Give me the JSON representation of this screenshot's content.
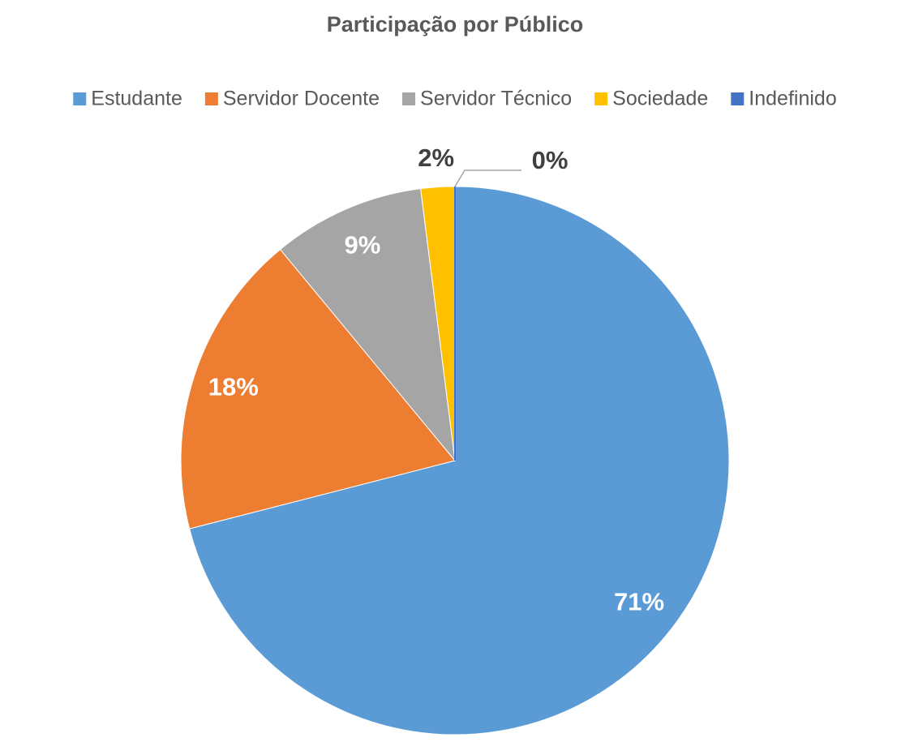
{
  "chart_data": {
    "type": "pie",
    "title": "Participação por Público",
    "categories": [
      "Estudante",
      "Servidor Docente",
      "Servidor Técnico",
      "Sociedade",
      "Indefinido"
    ],
    "values": [
      71,
      18,
      9,
      2,
      0
    ],
    "value_labels": [
      "71%",
      "18%",
      "9%",
      "2%",
      "0%"
    ],
    "colors": [
      "#5b9bd5",
      "#ed7d31",
      "#a5a5a5",
      "#ffc000",
      "#4472c4"
    ],
    "legend": "top"
  }
}
